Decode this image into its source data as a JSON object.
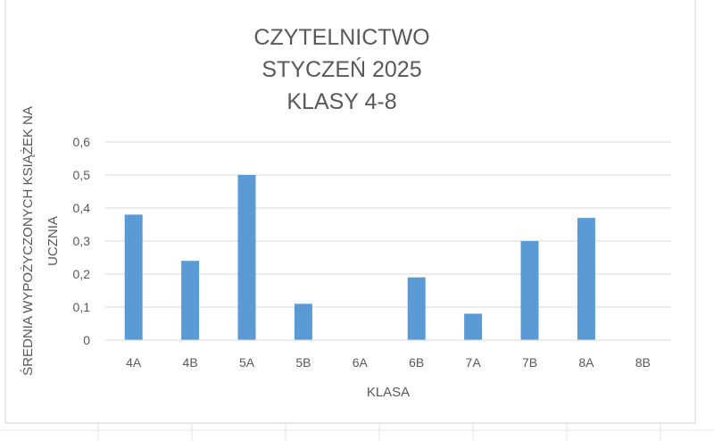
{
  "colors": {
    "bar": "#5b9bd5",
    "gridline": "#d9d9d9",
    "text": "#595959",
    "sheet_grid": "#e6e6e6",
    "chart_border": "#d0d0d0"
  },
  "chart_data": {
    "type": "bar",
    "title_lines": [
      "CZYTELNICTWO",
      "STYCZEŃ 2025",
      "KLASY 4-8"
    ],
    "xlabel": "KLASA",
    "ylabel_lines": [
      "ŚREDNIA WYPOŻYCZONYCH KSIĄŻEK NA",
      "UCZNIA"
    ],
    "categories": [
      "4A",
      "4B",
      "5A",
      "5B",
      "6A",
      "6B",
      "7A",
      "7B",
      "8A",
      "8B"
    ],
    "values": [
      0.38,
      0.24,
      0.5,
      0.11,
      0,
      0.19,
      0.08,
      0.3,
      0.37,
      0
    ],
    "ylim": [
      0,
      0.6
    ],
    "yticks": [
      0,
      0.1,
      0.2,
      0.3,
      0.4,
      0.5,
      0.6
    ],
    "ytick_labels": [
      "0",
      "0,1",
      "0,2",
      "0,3",
      "0,4",
      "0,5",
      "0,6"
    ],
    "grid": true,
    "legend": "none"
  }
}
